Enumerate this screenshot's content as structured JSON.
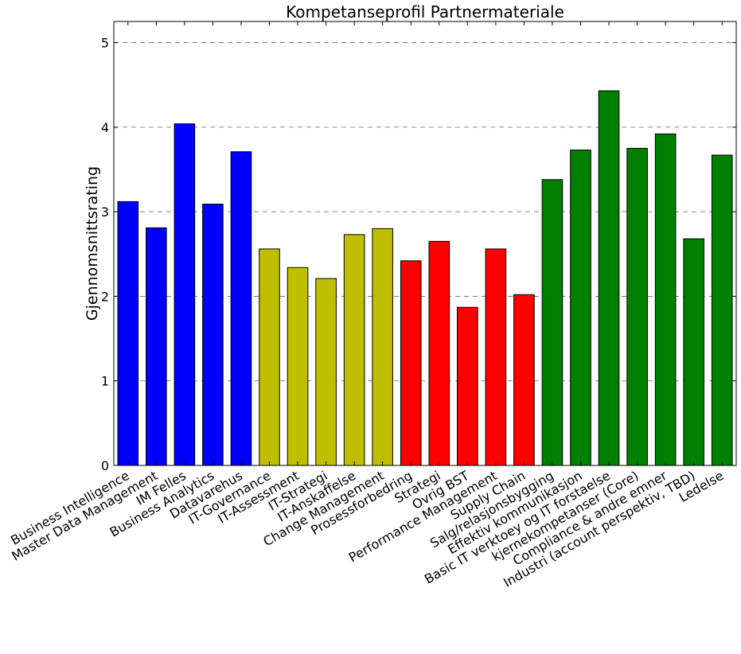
{
  "chart_data": {
    "type": "bar",
    "title": "Kompetanseprofil Partnermateriale",
    "xlabel": "",
    "ylabel": "Gjennomsnittsrating",
    "ylim": [
      0,
      5.25
    ],
    "yticks": [
      0,
      1,
      2,
      3,
      4,
      5
    ],
    "grid": "y-dashed",
    "categories": [
      "Business Intelligence",
      "Master Data Management",
      "IM Felles",
      "Business Analytics",
      "Datavarehus",
      "IT-Governance",
      "IT-Assessment",
      "IT-Strategi",
      "IT-Anskaffelse",
      "Change Management",
      "Prosessforbedring",
      "Strategi",
      "Ovrig BST",
      "Performance Management",
      "Supply Chain",
      "Salg/relasjonsbygging",
      "Effektiv kommunikasjon",
      "Basic IT verktoey og IT forstaelse",
      "kjernekompetanser (Core)",
      "Compliance & andre emner",
      "Industri (account perspektiv, TBD)",
      "Ledelse"
    ],
    "values": [
      3.12,
      2.81,
      4.04,
      3.09,
      3.71,
      2.56,
      2.34,
      2.21,
      2.73,
      2.8,
      2.42,
      2.65,
      1.87,
      2.56,
      2.02,
      3.38,
      3.73,
      4.43,
      3.75,
      3.92,
      2.68,
      3.67
    ],
    "colors": [
      "#0000ff",
      "#0000ff",
      "#0000ff",
      "#0000ff",
      "#0000ff",
      "#bfbf00",
      "#bfbf00",
      "#bfbf00",
      "#bfbf00",
      "#bfbf00",
      "#ff0000",
      "#ff0000",
      "#ff0000",
      "#ff0000",
      "#ff0000",
      "#008000",
      "#008000",
      "#008000",
      "#008000",
      "#008000",
      "#008000",
      "#008000"
    ]
  }
}
